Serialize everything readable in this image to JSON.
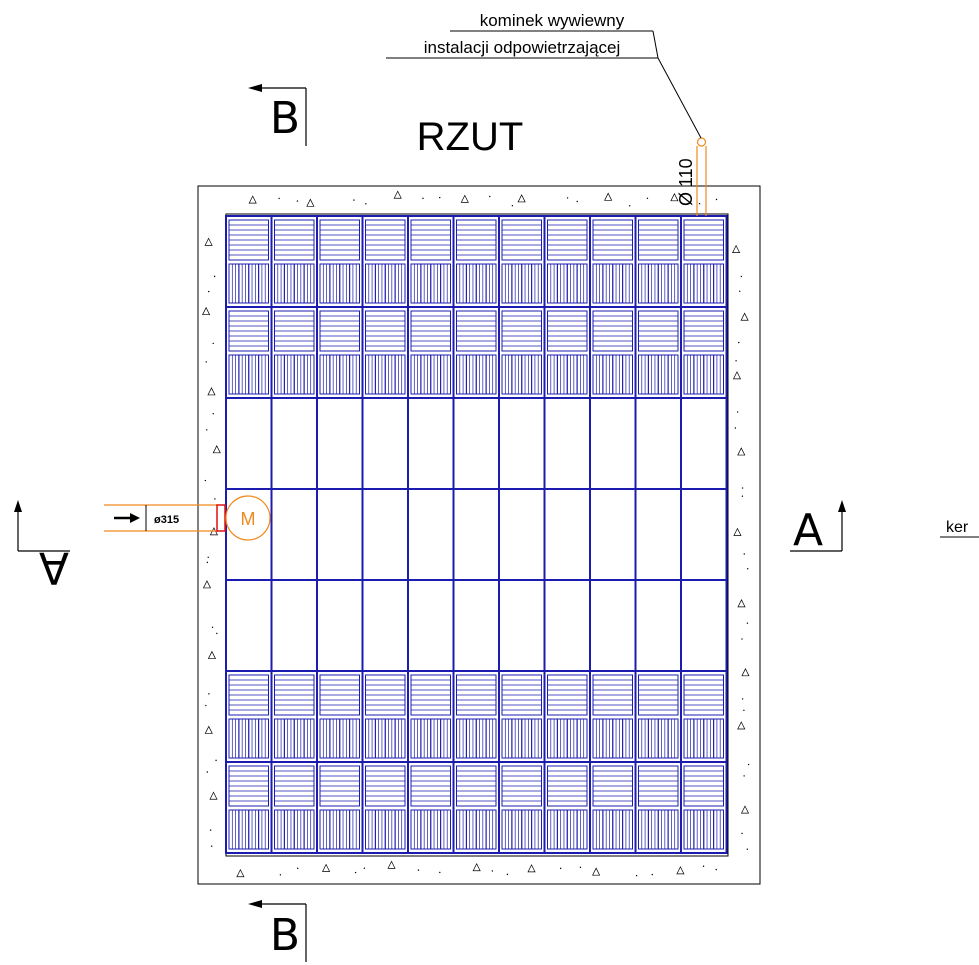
{
  "title": "RZUT",
  "colors": {
    "line": "#000000",
    "module": "#1c1cb0",
    "orange": "#f08a1c",
    "red": "#e01010"
  },
  "chimney": {
    "label_line1": "kominek wywiewny",
    "label_line2": "instalacji odpowietrzającej",
    "diameter": "Ø 110"
  },
  "inlet": {
    "diameter": "ø315",
    "manhole_letter": "M",
    "arrow_icon": "arrow-right-icon"
  },
  "sections": {
    "a_left": "A",
    "a_right": "A",
    "b_top": "B",
    "b_bottom": "B"
  },
  "cutoff_label": "ker",
  "grid": {
    "columns": 11,
    "rows": 7,
    "row_types": [
      "module",
      "module",
      "empty",
      "empty",
      "empty",
      "module",
      "module"
    ]
  }
}
